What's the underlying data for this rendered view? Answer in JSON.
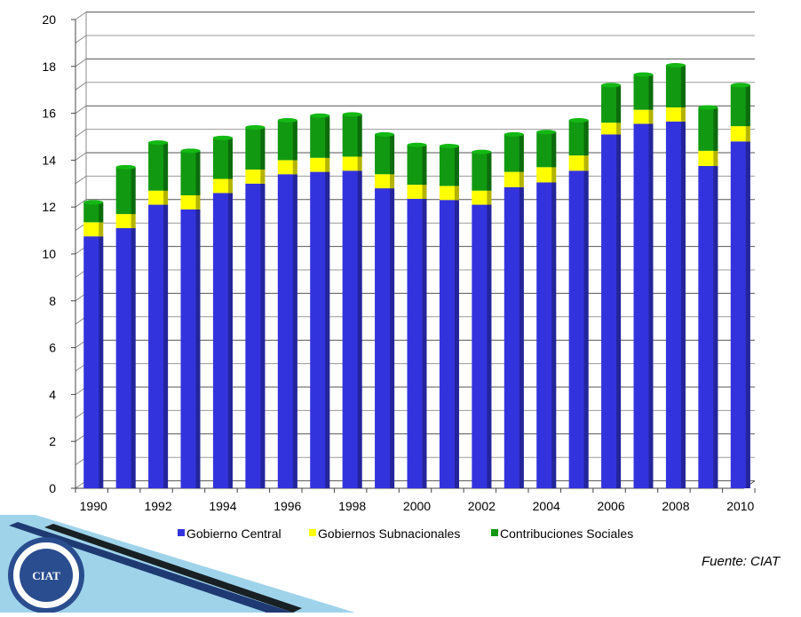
{
  "chart_data": {
    "type": "bar",
    "stacked": true,
    "categories": [
      "1990",
      "1991",
      "1992",
      "1993",
      "1994",
      "1995",
      "1996",
      "1997",
      "1998",
      "1999",
      "2000",
      "2001",
      "2002",
      "2003",
      "2004",
      "2005",
      "2006",
      "2007",
      "2008",
      "2009",
      "2010"
    ],
    "x_tick_labels": [
      "1990",
      "1992",
      "1994",
      "1996",
      "1998",
      "2000",
      "2002",
      "2004",
      "2006",
      "2008",
      "2010"
    ],
    "y_ticks": [
      "0",
      "2",
      "4",
      "6",
      "8",
      "10",
      "12",
      "14",
      "16",
      "18",
      "20"
    ],
    "ylim": [
      0,
      20
    ],
    "grid": true,
    "legend_position": "bottom",
    "series": [
      {
        "name": "Gobierno Central",
        "color": "#3333dd",
        "values": [
          10.75,
          11.1,
          12.1,
          11.9,
          12.6,
          13.0,
          13.4,
          13.5,
          13.55,
          12.8,
          12.35,
          12.3,
          12.1,
          12.85,
          13.05,
          13.55,
          15.1,
          15.55,
          15.65,
          13.75,
          14.8
        ]
      },
      {
        "name": "Gobiernos Subnacionales",
        "color": "#ffff00",
        "values": [
          0.6,
          0.6,
          0.6,
          0.6,
          0.6,
          0.6,
          0.6,
          0.6,
          0.6,
          0.6,
          0.6,
          0.6,
          0.6,
          0.65,
          0.65,
          0.65,
          0.5,
          0.6,
          0.6,
          0.65,
          0.65
        ]
      },
      {
        "name": "Contribuciones Sociales",
        "color": "#119911",
        "values": [
          0.85,
          2.0,
          2.05,
          1.9,
          1.75,
          1.8,
          1.7,
          1.8,
          1.8,
          1.7,
          1.7,
          1.7,
          1.65,
          1.6,
          1.5,
          1.5,
          1.6,
          1.5,
          1.8,
          1.85,
          1.75
        ]
      }
    ]
  },
  "source": "Fuente: CIAT",
  "logo": {
    "text": "CIAT"
  }
}
